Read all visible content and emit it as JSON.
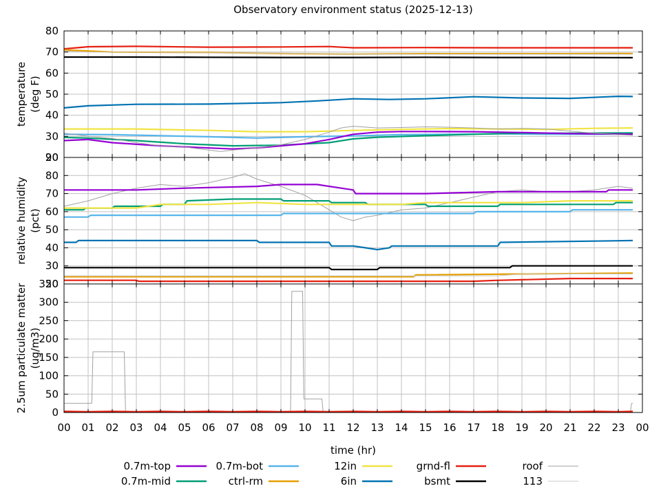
{
  "chart_data": {
    "type": "line",
    "title": "Observatory environment status (2025-12-13)",
    "xlabel": "time (hr)",
    "x_ticks": [
      "00",
      "01",
      "02",
      "03",
      "04",
      "05",
      "06",
      "07",
      "08",
      "09",
      "10",
      "11",
      "12",
      "13",
      "14",
      "15",
      "16",
      "17",
      "18",
      "19",
      "20",
      "21",
      "22",
      "23",
      "00"
    ],
    "xlim": [
      0,
      24
    ],
    "grid": true,
    "legend_position": "bottom",
    "legend": [
      {
        "name": "0.7m-top",
        "color": "#9400d3"
      },
      {
        "name": "0.7m-mid",
        "color": "#009e73"
      },
      {
        "name": "0.7m-bot",
        "color": "#56b4e9"
      },
      {
        "name": "ctrl-rm",
        "color": "#e69f00"
      },
      {
        "name": "12in",
        "color": "#f0e442"
      },
      {
        "name": "6in",
        "color": "#0072b2"
      },
      {
        "name": "grnd-fl",
        "color": "#e51e10"
      },
      {
        "name": "bsmt",
        "color": "#000000"
      },
      {
        "name": "roof",
        "color": "#a0a0a0"
      },
      {
        "name": "113",
        "color": "#c8c8c8"
      }
    ],
    "panels": [
      {
        "ylabel": "temperature\n(deg F)",
        "ylim": [
          20,
          80
        ],
        "y_ticks": [
          20,
          30,
          40,
          50,
          60,
          70,
          80
        ],
        "series": [
          {
            "name": "grnd-fl",
            "color": "#e51e10",
            "x": [
              0,
              1,
              3,
              6,
              9,
              11,
              12,
              15,
              18,
              21,
              23.6
            ],
            "y": [
              71.5,
              72.5,
              72.7,
              72.3,
              72.4,
              72.6,
              72.0,
              72.1,
              72.0,
              72.0,
              72.0
            ]
          },
          {
            "name": "ctrl-rm",
            "color": "#e69f00",
            "x": [
              0,
              2,
              6,
              9,
              12,
              15,
              18,
              21,
              23.6
            ],
            "y": [
              71.0,
              70.0,
              69.8,
              69.3,
              69.0,
              69.2,
              69.2,
              69.2,
              69.3
            ]
          },
          {
            "name": "113",
            "color": "#c8c8c8",
            "x": [
              0,
              1,
              3,
              6,
              9,
              12,
              15,
              18,
              21,
              23.6
            ],
            "y": [
              70.5,
              70.0,
              70.0,
              69.6,
              69.5,
              69.0,
              68.9,
              68.9,
              68.9,
              68.9
            ]
          },
          {
            "name": "bsmt",
            "color": "#000000",
            "x": [
              0,
              3,
              6,
              9,
              12,
              15,
              18,
              21,
              23.6
            ],
            "y": [
              67.6,
              67.6,
              67.5,
              67.4,
              67.4,
              67.5,
              67.4,
              67.4,
              67.3
            ]
          },
          {
            "name": "6in",
            "color": "#0072b2",
            "x": [
              0,
              1,
              3,
              6,
              9,
              10.5,
              12,
              13.5,
              15,
              17,
              19,
              21,
              23,
              23.6
            ],
            "y": [
              43.5,
              44.5,
              45.2,
              45.3,
              46.0,
              46.8,
              47.8,
              47.5,
              47.8,
              48.8,
              48.2,
              48.0,
              49.0,
              48.9
            ]
          },
          {
            "name": "12in",
            "color": "#f0e442",
            "x": [
              0,
              3,
              6,
              8,
              10,
              12,
              14,
              16,
              18,
              20,
              22,
              23.6
            ],
            "y": [
              33.5,
              33.5,
              32.8,
              32.2,
              32.2,
              32.8,
              33.3,
              33.7,
              33.5,
              33.3,
              33.8,
              34.0
            ]
          },
          {
            "name": "0.7m-bot",
            "color": "#56b4e9",
            "x": [
              0,
              2,
              4,
              6,
              8,
              10,
              12,
              14,
              16,
              18,
              20,
              22,
              23.6
            ],
            "y": [
              31.0,
              30.8,
              30.3,
              29.8,
              29.2,
              29.8,
              30.2,
              30.8,
              31.0,
              31.2,
              31.0,
              31.0,
              31.0
            ]
          },
          {
            "name": "0.7m-mid",
            "color": "#009e73",
            "x": [
              0,
              1,
              3,
              5,
              7,
              9,
              11,
              12,
              13,
              15,
              17,
              19,
              21,
              23.6
            ],
            "y": [
              29.5,
              29.2,
              28.0,
              26.5,
              25.5,
              25.8,
              27.0,
              28.8,
              29.6,
              30.3,
              31.0,
              31.5,
              31.5,
              31.6
            ]
          },
          {
            "name": "0.7m-top",
            "color": "#9400d3",
            "x": [
              0,
              1,
              2,
              4,
              6,
              7,
              8,
              9,
              10,
              11,
              12,
              13,
              14,
              15,
              17,
              19,
              21,
              23.6
            ],
            "y": [
              28.0,
              28.5,
              27.0,
              25.5,
              24.5,
              24.0,
              24.5,
              25.5,
              26.5,
              28.5,
              31.0,
              32.0,
              32.3,
              32.3,
              32.2,
              31.8,
              31.3,
              31.0
            ]
          },
          {
            "name": "roof",
            "color": "#a0a0a0",
            "x": [
              0,
              1,
              2,
              3,
              4,
              5,
              6,
              6.5,
              7,
              8,
              9,
              10,
              11,
              11.5,
              12,
              13,
              14,
              15,
              16,
              17,
              18,
              19,
              20,
              21,
              22,
              23,
              23.6
            ],
            "y": [
              31.5,
              30.0,
              29.0,
              27.0,
              25.5,
              25.0,
              23.5,
              22.8,
              23.5,
              24.5,
              26.0,
              28.5,
              32.0,
              34.0,
              34.8,
              34.0,
              34.2,
              34.5,
              34.3,
              34.0,
              33.5,
              33.8,
              33.5,
              32.5,
              31.5,
              30.8,
              30.5
            ]
          }
        ]
      },
      {
        "ylabel": "relative humidity\n(pct)",
        "ylim": [
          20,
          90
        ],
        "y_ticks": [
          20,
          30,
          40,
          50,
          60,
          70,
          80,
          90
        ],
        "series": [
          {
            "name": "roof",
            "color": "#a0a0a0",
            "x": [
              0,
              1,
              2,
              3,
              4,
              5,
              6,
              7,
              7.5,
              8,
              9,
              10,
              11,
              11.5,
              12,
              12.5,
              13,
              14,
              15,
              16,
              17,
              18,
              19,
              20,
              21,
              22,
              23,
              23.6
            ],
            "y": [
              63,
              66,
              70,
              73,
              75,
              74,
              76,
              79,
              81,
              78,
              74,
              69,
              61,
              57,
              55,
              57,
              58,
              61,
              62,
              65,
              68,
              71,
              72,
              71,
              71,
              72,
              74,
              73
            ]
          },
          {
            "name": "0.7m-top",
            "color": "#9400d3",
            "x": [
              0,
              3,
              5,
              8,
              9,
              10.5,
              12,
              12.1,
              15,
              18,
              21,
              22.5,
              22.6,
              23.6
            ],
            "y": [
              72,
              72,
              73,
              74,
              75,
              75,
              72,
              70,
              70,
              71,
              71,
              71,
              72,
              72
            ]
          },
          {
            "name": "0.7m-mid",
            "color": "#009e73",
            "x": [
              0,
              0.8,
              0.9,
              2,
              2.1,
              4,
              4.1,
              5,
              5.1,
              7,
              9,
              9.1,
              11,
              11.1,
              12.5,
              12.6,
              15,
              15.1,
              18,
              18.1,
              21,
              21.1,
              22.8,
              22.9,
              23.6
            ],
            "y": [
              61,
              61,
              62,
              62,
              63,
              63,
              64,
              64,
              66,
              67,
              67,
              66,
              66,
              65,
              65,
              64,
              64,
              63,
              63,
              64,
              64,
              64,
              64,
              65,
              65
            ]
          },
          {
            "name": "12in",
            "color": "#f0e442",
            "x": [
              0,
              3,
              4,
              6,
              8,
              10,
              11,
              12,
              14,
              15,
              17,
              19,
              21,
              23.6
            ],
            "y": [
              62,
              62,
              64,
              64,
              65,
              64,
              64,
              64,
              64,
              65,
              65,
              65,
              66,
              66
            ]
          },
          {
            "name": "0.7m-bot",
            "color": "#56b4e9",
            "x": [
              0,
              1,
              1.1,
              9,
              9.1,
              17,
              17.1,
              21,
              21.1,
              23.6
            ],
            "y": [
              57,
              57,
              58,
              58,
              59,
              59,
              60,
              60,
              61,
              61
            ]
          },
          {
            "name": "6in",
            "color": "#0072b2",
            "x": [
              0,
              0.5,
              0.6,
              6,
              8,
              8.1,
              11,
              11.1,
              12,
              12.5,
              13,
              13.5,
              13.6,
              18,
              18.1,
              23.6
            ],
            "y": [
              43,
              43,
              44,
              44,
              44,
              43,
              43,
              41,
              41,
              40,
              39,
              40,
              41,
              41,
              43,
              44
            ]
          },
          {
            "name": "bsmt",
            "color": "#000000",
            "x": [
              0,
              11,
              11.1,
              13,
              13.1,
              18.5,
              18.6,
              23.6
            ],
            "y": [
              29,
              29,
              28,
              28,
              29,
              29,
              30,
              30
            ]
          },
          {
            "name": "ctrl-rm",
            "color": "#e69f00",
            "x": [
              0,
              14.5,
              14.6,
              23.6
            ],
            "y": [
              24,
              24,
              25,
              26
            ]
          },
          {
            "name": "113",
            "color": "#c8c8c8",
            "x": [
              0,
              18,
              19,
              23.6
            ],
            "y": [
              24.5,
              24.5,
              25.5,
              25.5
            ]
          },
          {
            "name": "grnd-fl",
            "color": "#e51e10",
            "x": [
              0,
              3,
              3.1,
              17,
              18,
              18.1,
              21,
              21.1,
              23.6
            ],
            "y": [
              22,
              22,
              21.5,
              21.5,
              22,
              22,
              23,
              23,
              23
            ]
          }
        ]
      },
      {
        "ylabel": "2.5um particulate matter\n(ug/m3)",
        "ylim": [
          0,
          350
        ],
        "y_ticks": [
          0,
          50,
          100,
          150,
          200,
          250,
          300,
          350
        ],
        "series": [
          {
            "name": "roof",
            "color": "#a0a0a0",
            "x": [
              0,
              1.15,
              1.2,
              2.5,
              2.55,
              9.4,
              9.45,
              9.9,
              9.95,
              10.7,
              10.75,
              23.5,
              23.55,
              23.6
            ],
            "y": [
              25,
              25,
              165,
              165,
              2,
              2,
              330,
              330,
              37,
              37,
              2,
              2,
              25,
              25
            ]
          },
          {
            "name": "grnd-fl",
            "color": "#e51e10",
            "x": [
              0,
              1,
              2,
              3,
              4,
              5,
              6,
              7,
              8,
              9,
              10,
              11,
              12,
              13,
              14,
              15,
              16,
              17,
              18,
              19,
              20,
              21,
              22,
              23,
              23.6
            ],
            "y": [
              3,
              2,
              3,
              2,
              3,
              2,
              3,
              2,
              3,
              2,
              3,
              2,
              3,
              2,
              3,
              2,
              3,
              2,
              3,
              2,
              3,
              2,
              3,
              2,
              3
            ]
          }
        ]
      }
    ]
  }
}
